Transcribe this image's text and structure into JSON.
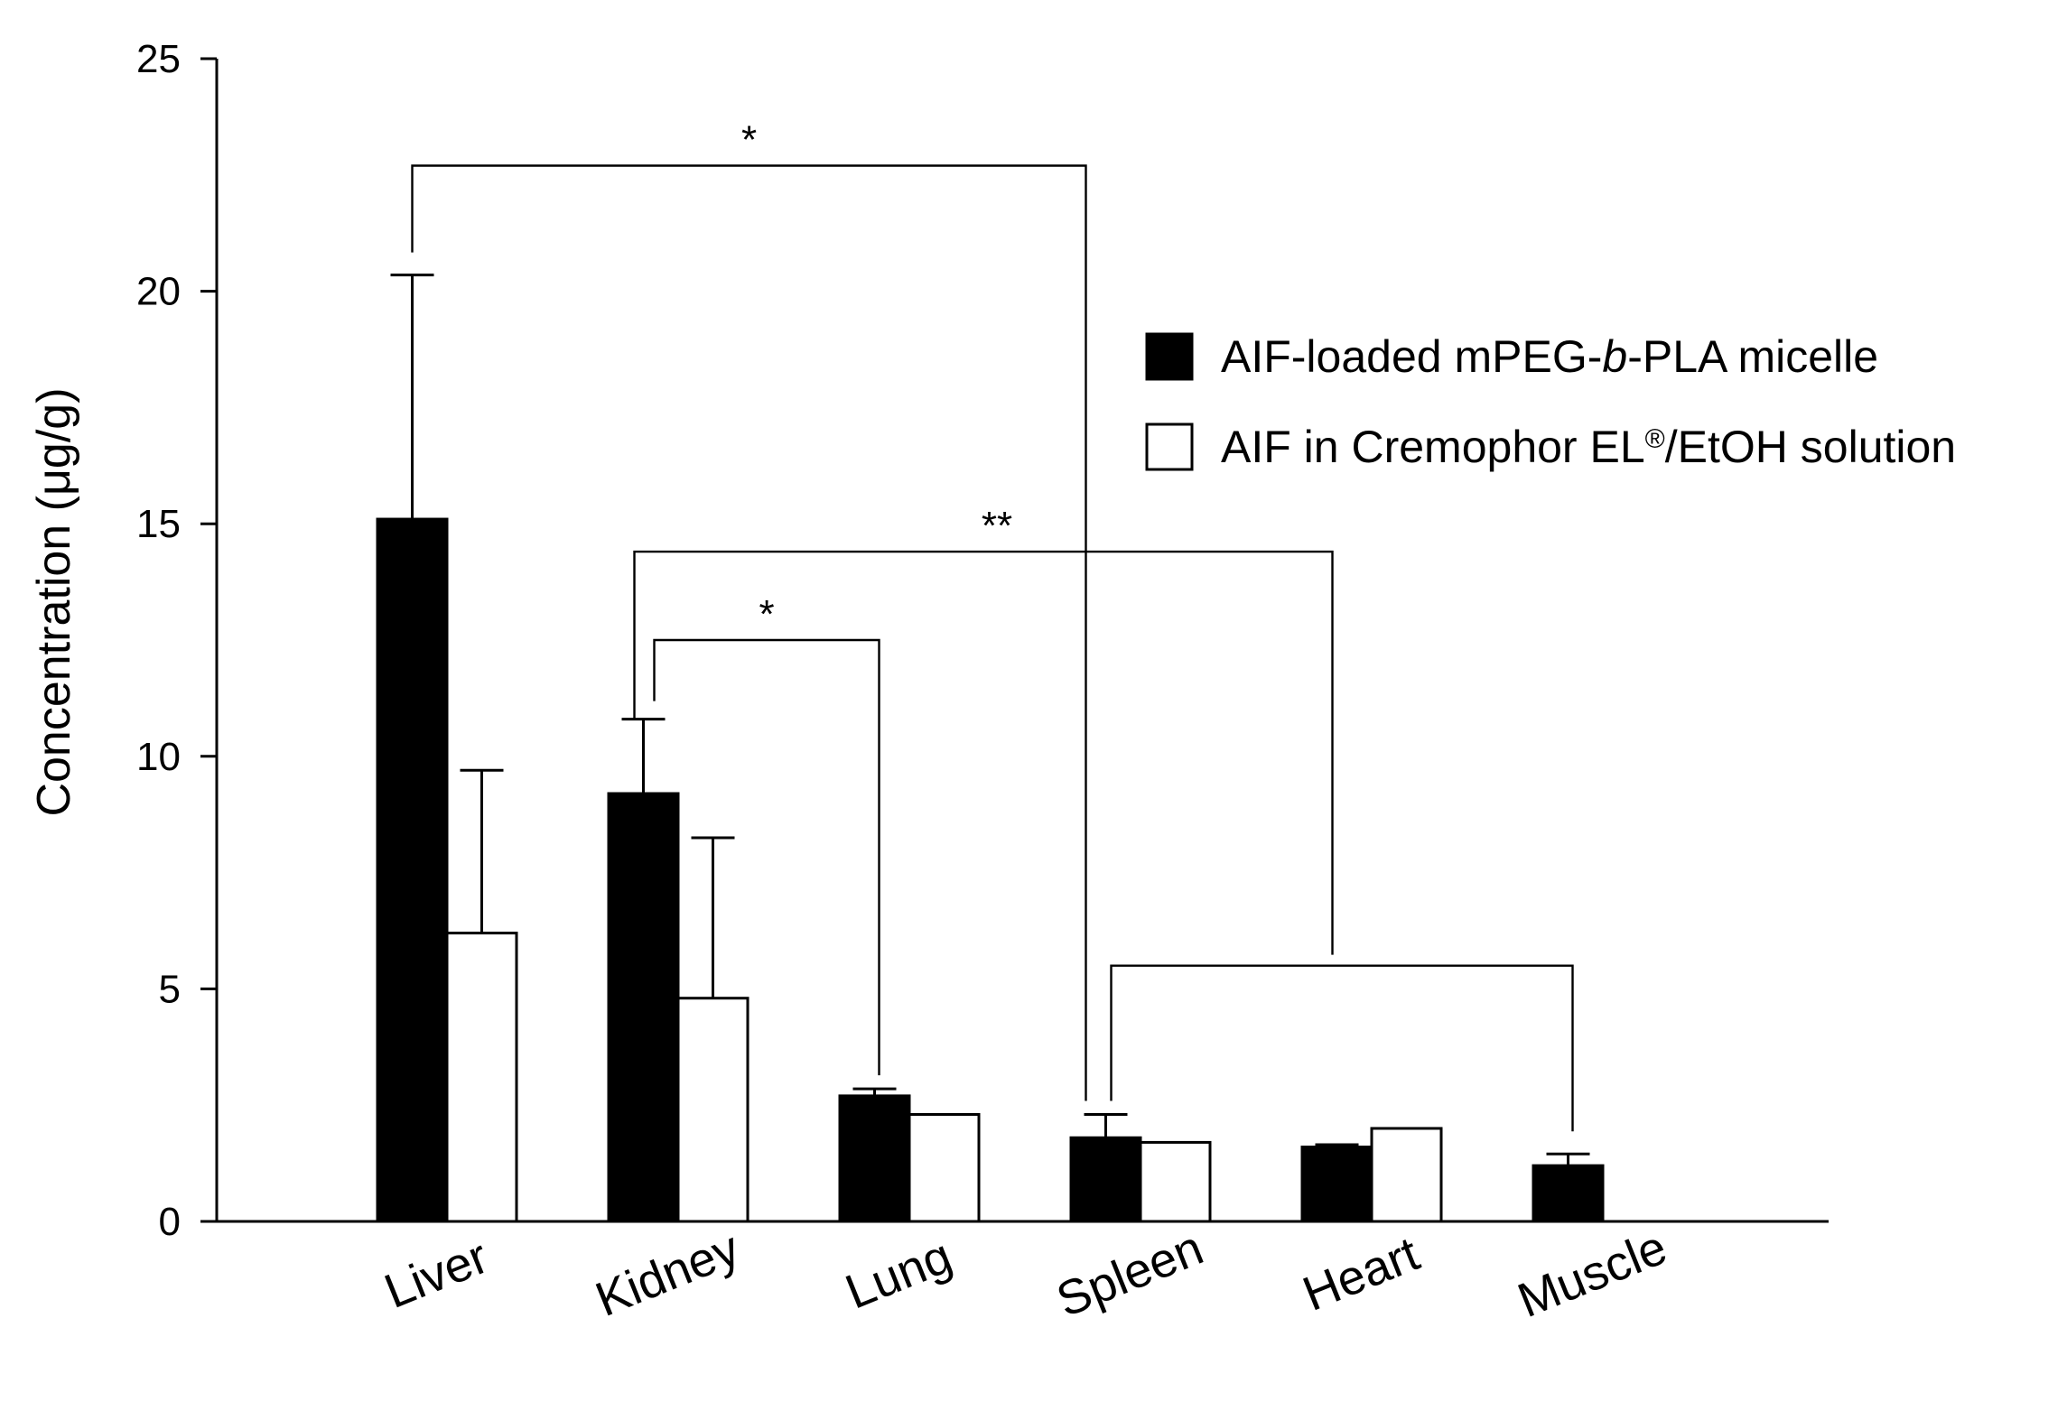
{
  "chart_data": {
    "type": "bar",
    "title": "",
    "xlabel": "",
    "ylabel": "Concentration (μg/g)",
    "ylim": [
      0,
      25
    ],
    "yticks": [
      0,
      5,
      10,
      15,
      20,
      25
    ],
    "ytick_labels": [
      "0",
      "5",
      "10",
      "15",
      "20",
      "25"
    ],
    "categories": [
      "Liver",
      "Kidney",
      "Lung",
      "Spleen",
      "Heart",
      "Muscle"
    ],
    "legend_position": "top-right",
    "series": [
      {
        "name": "AIF-loaded mPEG-b-PLA micelle",
        "fill": "#000000",
        "values": [
          15.1,
          9.2,
          2.7,
          1.8,
          1.6,
          1.2
        ],
        "errors": [
          5.25,
          1.6,
          0.15,
          0.5,
          0.05,
          0.25
        ]
      },
      {
        "name": "AIF in Cremophor EL®/EtOH solution",
        "fill": "#ffffff",
        "values": [
          6.2,
          4.8,
          2.3,
          1.7,
          2.0,
          null
        ],
        "errors": [
          3.5,
          3.45,
          0,
          0,
          0,
          null
        ]
      }
    ],
    "legend_labels": [
      {
        "prefix": "AIF-loaded mPEG-",
        "italic": "b",
        "suffix": "-PLA micelle"
      },
      {
        "prefix": "AIF in Cremophor EL",
        "sup": "®",
        "suffix": "/EtOH solution"
      }
    ],
    "significance": [
      {
        "label": "*",
        "from": "Liver",
        "to": [
          "Spleen"
        ],
        "level": 22.7
      },
      {
        "label": "**",
        "from": "Kidney",
        "to": [
          "Spleen",
          "Heart",
          "Muscle"
        ],
        "level": 14.4
      },
      {
        "label": "*",
        "from": "Kidney",
        "to": [
          "Lung"
        ],
        "level": 12.5
      }
    ]
  }
}
